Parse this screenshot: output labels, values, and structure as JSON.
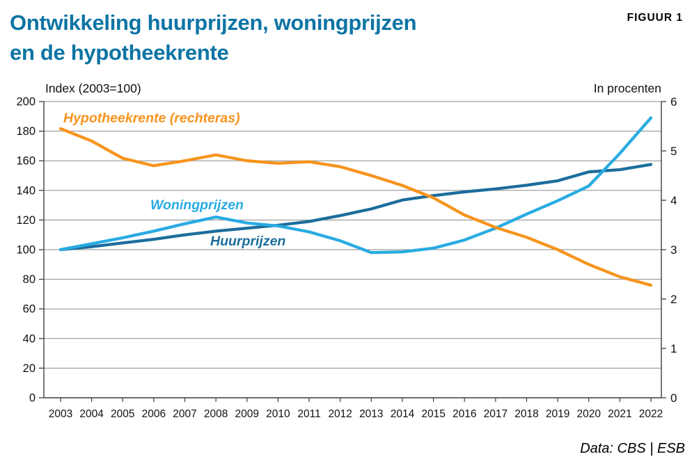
{
  "figure": {
    "title_line1": "Ontwikkeling huurprijzen, woningprijzen",
    "title_line2": "en de hypotheekrente",
    "figure_label": "FIGUUR 1",
    "source": "Data: CBS | ESB"
  },
  "colors": {
    "title": "#0d74a4",
    "dark_blue": "#1c6d9c",
    "light_blue": "#29abe2",
    "orange": "#f7941d",
    "gridline": "#8a8a8a",
    "axis": "#3f3f3f"
  },
  "chart_data": {
    "type": "line",
    "title": "Ontwikkeling huurprijzen, woningprijzen en de hypotheekrente",
    "x": [
      2003,
      2004,
      2005,
      2006,
      2007,
      2008,
      2009,
      2010,
      2011,
      2012,
      2013,
      2014,
      2015,
      2016,
      2017,
      2018,
      2019,
      2020,
      2021,
      2022
    ],
    "left_axis": {
      "title": "Index (2003=100)",
      "min": 0,
      "max": 200,
      "step": 20
    },
    "right_axis": {
      "title": "In procenten",
      "min": 0,
      "max": 6,
      "step": 1
    },
    "grid": true,
    "legend": "inline-labels",
    "series": [
      {
        "name": "Huurprijzen",
        "axis": "left",
        "color": "#1c6d9c",
        "values": [
          100,
          102,
          104.5,
          107,
          110,
          112.5,
          114.5,
          116.5,
          119,
          123,
          127.5,
          133.5,
          136.5,
          139,
          141,
          143.5,
          146.5,
          152.5,
          154,
          157.5
        ]
      },
      {
        "name": "Woningprijzen",
        "axis": "left",
        "color": "#29abe2",
        "values": [
          100,
          104,
          108,
          112.5,
          117.5,
          122,
          118,
          116,
          112,
          106,
          98,
          98.5,
          101,
          106.5,
          114.5,
          124,
          133,
          143,
          165,
          189
        ]
      },
      {
        "name": "Hypotheekrente (rechteras)",
        "axis": "right",
        "color": "#f7941d",
        "values": [
          5.45,
          5.2,
          4.85,
          4.7,
          4.8,
          4.92,
          4.8,
          4.75,
          4.78,
          4.68,
          4.5,
          4.3,
          4.05,
          3.7,
          3.45,
          3.25,
          3.0,
          2.7,
          2.45,
          2.28
        ]
      }
    ]
  }
}
